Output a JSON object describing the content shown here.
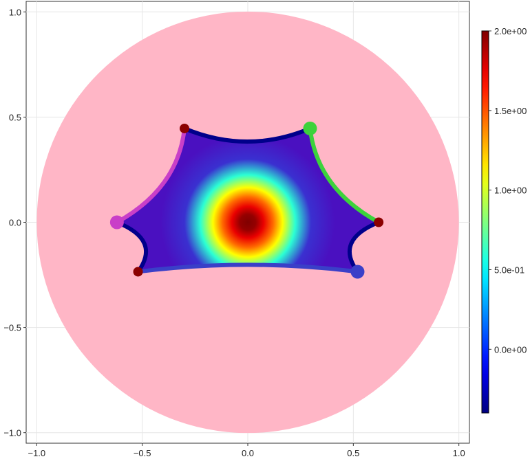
{
  "chart_data": {
    "type": "heatmap",
    "title": "",
    "xlabel": "",
    "ylabel": "",
    "xlim": [
      -1.05,
      1.05
    ],
    "ylim": [
      -1.05,
      1.05
    ],
    "x_ticks": [
      "−1.0",
      "−0.5",
      "0.0",
      "0.5",
      "1.0"
    ],
    "x_tick_values": [
      -1.0,
      -0.5,
      0.0,
      0.5,
      1.0
    ],
    "y_ticks": [
      "−1.0",
      "−0.5",
      "0.0",
      "0.5",
      "1.0"
    ],
    "y_tick_values": [
      -1.0,
      -0.5,
      0.0,
      0.5,
      1.0
    ],
    "grid": true,
    "disk": {
      "center": [
        0,
        0
      ],
      "radius": 1.0,
      "color": "#ffb6c6"
    },
    "polygon_vertices": [
      {
        "x": 0.295,
        "y": 0.446,
        "kind": "colored",
        "color": "#3cd23c"
      },
      {
        "x": 0.62,
        "y": 0.0,
        "kind": "ideal",
        "color": "#8b0000"
      },
      {
        "x": 0.52,
        "y": -0.235,
        "kind": "colored",
        "color": "#3a3fc8"
      },
      {
        "x": -0.52,
        "y": -0.235,
        "kind": "ideal",
        "color": "#8b0000"
      },
      {
        "x": -0.62,
        "y": 0.0,
        "kind": "colored",
        "color": "#c93fc8"
      },
      {
        "x": -0.3,
        "y": 0.446,
        "kind": "ideal",
        "color": "#8b0000"
      }
    ],
    "edges": [
      {
        "from": 0,
        "to": 1,
        "color": "#3cd23c"
      },
      {
        "from": 1,
        "to": 2,
        "color": "#00008b"
      },
      {
        "from": 2,
        "to": 3,
        "color": "#3a3fc8"
      },
      {
        "from": 3,
        "to": 4,
        "color": "#00008b"
      },
      {
        "from": 4,
        "to": 5,
        "color": "#c93fc8"
      },
      {
        "from": 5,
        "to": 0,
        "color": "#00008b"
      }
    ],
    "field": {
      "center": [
        0,
        0
      ],
      "max_value": 2.0,
      "min_value": -0.4,
      "description_units": "value"
    },
    "colorbar": {
      "colormap": "jet",
      "min": -0.4,
      "max": 2.0,
      "ticks": [
        0.0,
        0.5,
        1.0,
        1.5,
        2.0
      ],
      "tick_labels": [
        "0.0e+00",
        "5.0e-01",
        "1.0e+00",
        "1.5e+00",
        "2.0e+00"
      ]
    }
  }
}
